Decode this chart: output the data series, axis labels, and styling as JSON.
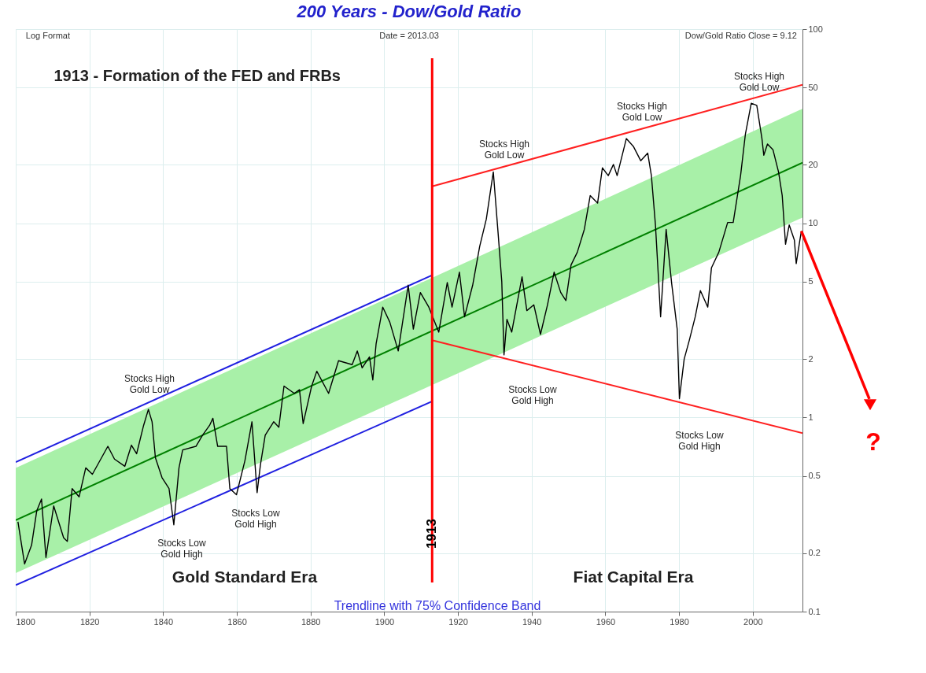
{
  "chart_data": {
    "type": "line",
    "title": "200 Years - Dow/Gold Ratio",
    "xlim": [
      1800,
      2013.5
    ],
    "xticks": [
      1800,
      1820,
      1840,
      1860,
      1880,
      1900,
      1920,
      1940,
      1960,
      1980,
      2000
    ],
    "ylim": [
      0.1,
      100
    ],
    "yticks": [
      0.1,
      0.2,
      0.5,
      1,
      2,
      5,
      10,
      20,
      50,
      100
    ],
    "log": "y",
    "grid": true,
    "series": [
      {
        "color": "#008000",
        "x": [
          1800,
          2013.5
        ],
        "values": [
          0.296,
          20.5
        ],
        "lower": [
          0.158,
          10.7
        ],
        "upper": [
          0.549,
          38.9
        ]
      },
      {
        "color": "#2020e0",
        "x": [
          1800,
          1913
        ],
        "values": [
          0.589,
          5.4
        ]
      },
      {
        "color": "#2020e0",
        "x": [
          1800,
          1913
        ],
        "values": [
          0.137,
          1.21
        ]
      },
      {
        "color": "#ff2020",
        "x": [
          1913,
          2013.5
        ],
        "values": [
          15.5,
          51.7
        ]
      },
      {
        "color": "#ff2020",
        "x": [
          1913,
          2013.5
        ],
        "values": [
          2.5,
          0.83
        ]
      },
      {
        "color": "#000000",
        "x": [
          1800.6,
          1802.4,
          1804.3,
          1805.7,
          1807,
          1808.2,
          1810.3,
          1813,
          1814,
          1815.3,
          1817.2,
          1819,
          1820.8,
          1825,
          1826.8,
          1829.6,
          1831.4,
          1832.8,
          1834.7,
          1836,
          1837,
          1837.9,
          1839.7,
          1841.6,
          1842.9,
          1844.3,
          1845.3,
          1848.9,
          1850.7,
          1852.6,
          1853.5,
          1854.8,
          1857.2,
          1858.1,
          1859.9,
          1862.2,
          1864.1,
          1865.5,
          1866.4,
          1867.7,
          1870,
          1871.4,
          1872.8,
          1875.6,
          1877,
          1878,
          1880.3,
          1881.7,
          1884.9,
          1887.6,
          1891.3,
          1892.7,
          1894,
          1896,
          1896.9,
          1897.8,
          1899.6,
          1901.5,
          1903.8,
          1906.5,
          1907.9,
          1909.8,
          1912.1,
          1914.8,
          1917.1,
          1918.4,
          1920.4,
          1921.8,
          1924,
          1925.9,
          1927.7,
          1928.6,
          1929.6,
          1930.9,
          1931.9,
          1932.5,
          1933.3,
          1934.6,
          1937.4,
          1938.7,
          1940.6,
          1942.4,
          1944.3,
          1946.1,
          1947.9,
          1949.3,
          1950.7,
          1952.4,
          1954.3,
          1955.9,
          1957.9,
          1959.2,
          1960.8,
          1962.2,
          1963.2,
          1965.7,
          1967.6,
          1969.6,
          1971.5,
          1972.5,
          1973.6,
          1974.5,
          1975,
          1976.5,
          1978,
          1979.5,
          1980.1,
          1981.4,
          1982.8,
          1984.4,
          1985.8,
          1987.8,
          1988.8,
          1990.8,
          1993.2,
          1994.7,
          1996.7,
          1998,
          1999.6,
          2001.1,
          2002.5,
          2003,
          2004,
          2005.5,
          2007,
          2008,
          2008.9,
          2009.9,
          2011.3,
          2011.8,
          2012.8,
          2013.2
        ],
        "values": [
          0.29,
          0.176,
          0.22,
          0.33,
          0.38,
          0.19,
          0.35,
          0.24,
          0.23,
          0.43,
          0.39,
          0.55,
          0.51,
          0.71,
          0.61,
          0.56,
          0.72,
          0.65,
          0.91,
          1.1,
          0.95,
          0.62,
          0.49,
          0.43,
          0.28,
          0.55,
          0.68,
          0.71,
          0.81,
          0.91,
          0.99,
          0.71,
          0.71,
          0.43,
          0.4,
          0.6,
          0.95,
          0.41,
          0.57,
          0.81,
          0.95,
          0.89,
          1.45,
          1.33,
          1.39,
          0.93,
          1.45,
          1.73,
          1.33,
          1.96,
          1.87,
          2.2,
          1.8,
          2.05,
          1.56,
          2.4,
          3.7,
          3.1,
          2.2,
          4.8,
          2.85,
          4.4,
          3.7,
          2.75,
          4.95,
          3.7,
          5.6,
          3.3,
          4.8,
          7.6,
          10.5,
          13.7,
          18.4,
          8.9,
          5.0,
          2.1,
          3.2,
          2.75,
          5.3,
          3.55,
          3.8,
          2.68,
          3.8,
          5.6,
          4.4,
          4.0,
          6.1,
          7.1,
          9.3,
          13.9,
          12.7,
          19.3,
          17.6,
          20.1,
          17.6,
          27.3,
          24.9,
          21,
          23,
          17.6,
          9.8,
          4.9,
          3.3,
          9.3,
          4.9,
          2.85,
          1.25,
          2.0,
          2.5,
          3.3,
          4.5,
          3.7,
          5.9,
          7.1,
          10.1,
          10.1,
          17.6,
          28.7,
          41.5,
          40.5,
          27.3,
          22.4,
          25.6,
          23.9,
          18.4,
          13.9,
          7.8,
          9.8,
          8.2,
          6.2,
          8.2,
          9.12
        ]
      }
    ],
    "ref_lines": [
      {
        "axis": "x",
        "value": 1913,
        "label": "1913",
        "color": "#ff0000"
      }
    ],
    "annotations": [
      "1913 - Formation of the FED and FRBs",
      "Gold Standard Era",
      "Fiat Capital Era",
      "Trendline with 75% Confidence Band",
      "Log Format",
      "Date = 2013.03",
      "Dow/Gold Ratio Close = 9.12",
      "?",
      "Stocks High\nGold Low",
      "Stocks High\nGold Low",
      "Stocks High\nGold Low",
      "Stocks High\nGold Low",
      "Stocks Low\nGold High",
      "Stocks Low\nGold High",
      "Stocks Low\nGold High",
      "Stocks Low\nGold High"
    ]
  }
}
